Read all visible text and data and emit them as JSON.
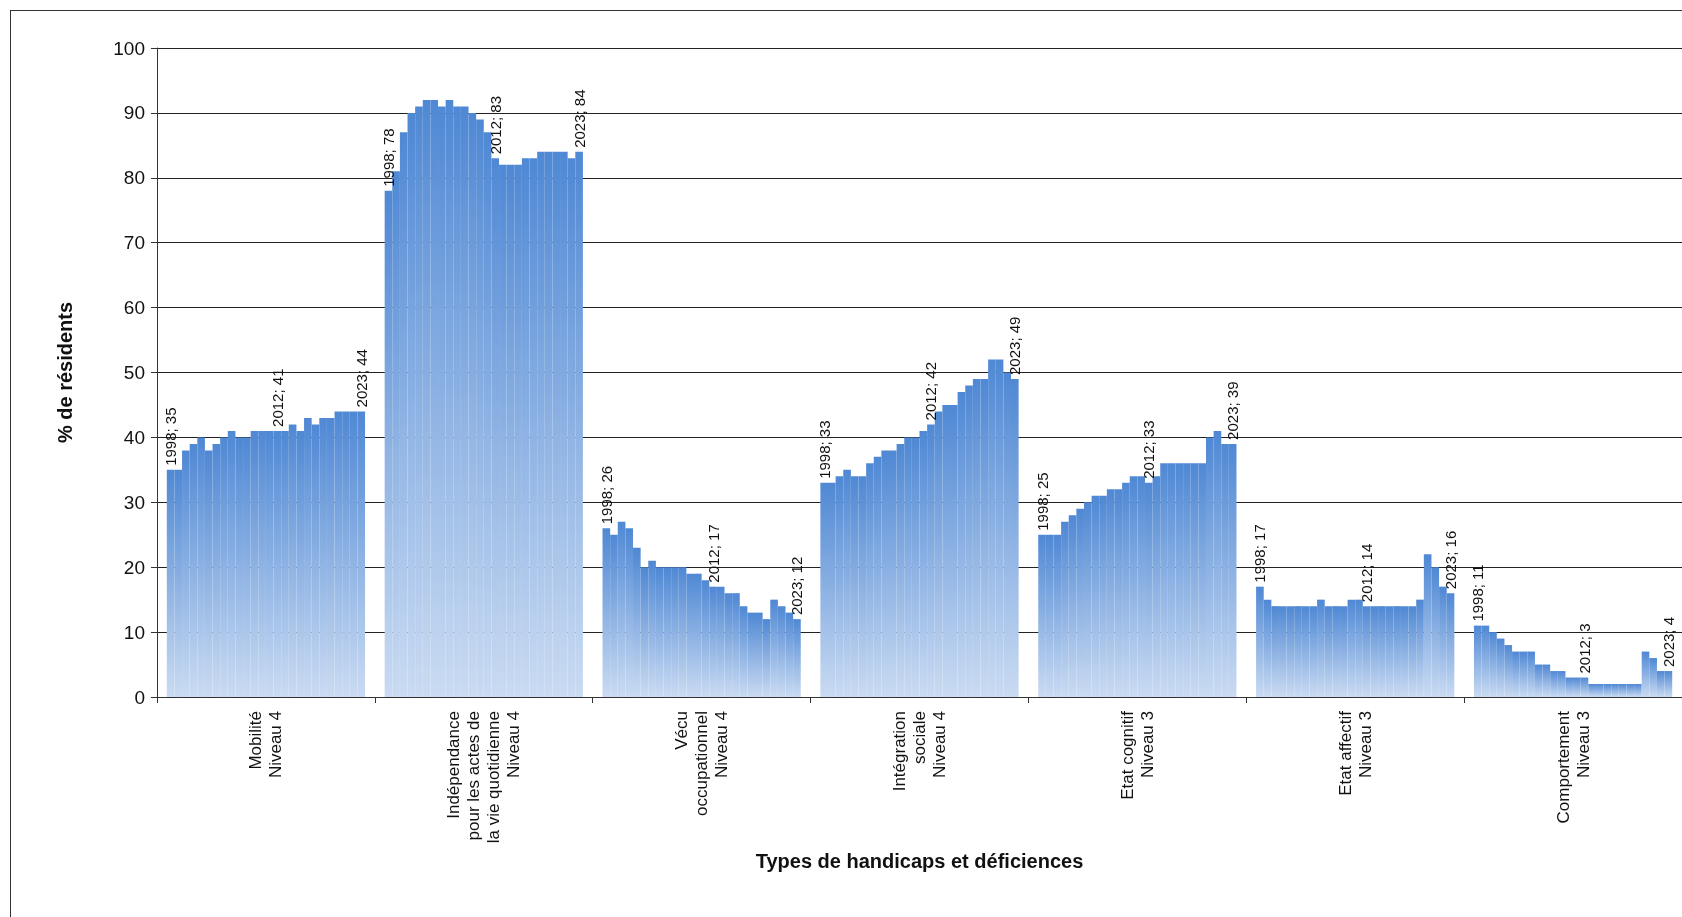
{
  "chart_data": {
    "type": "bar",
    "xlabel": "Types de handicaps et déficiences",
    "ylabel": "% de résidents",
    "categories": [
      "Mobilité\nNiveau 4",
      "Indépendance\npour les actes de\nla vie quotidienne\nNiveau 4",
      "Vécu\noccupationnel\nNiveau 4",
      "Intégration\nsociale\nNiveau 4",
      "Etat cognitif\nNiveau 3",
      "Etat affectif\nNiveau 3",
      "Comportement\nNiveau 3"
    ],
    "ylim": [
      0,
      100
    ],
    "yticks": [
      0,
      10,
      20,
      30,
      40,
      50,
      60,
      70,
      80,
      90,
      100
    ],
    "grid": "y",
    "series": [
      {
        "color": "#4f88d4",
        "values": [
          35,
          78,
          26,
          33,
          25,
          17,
          11
        ],
        "value_labels": [
          "1998; 35",
          "1998; 78",
          "1998; 26",
          "1998; 33",
          "1998; 25",
          "1998; 17",
          "1998; 11"
        ]
      },
      {
        "color": "#4f88d4",
        "values": [
          35,
          81,
          25,
          33,
          25,
          15,
          11
        ]
      },
      {
        "color": "#4f88d4",
        "values": [
          38,
          87,
          27,
          34,
          25,
          14,
          10
        ]
      },
      {
        "color": "#4f88d4",
        "values": [
          39,
          90,
          26,
          35,
          27,
          14,
          9
        ]
      },
      {
        "color": "#4f88d4",
        "values": [
          40,
          91,
          23,
          34,
          28,
          14,
          8
        ]
      },
      {
        "color": "#4f88d4",
        "values": [
          38,
          92,
          20,
          34,
          29,
          14,
          7
        ]
      },
      {
        "color": "#4f88d4",
        "values": [
          39,
          92,
          21,
          36,
          30,
          14,
          7
        ]
      },
      {
        "color": "#4f88d4",
        "values": [
          40,
          91,
          20,
          37,
          31,
          14,
          7
        ]
      },
      {
        "color": "#4f88d4",
        "values": [
          41,
          92,
          20,
          38,
          31,
          15,
          5
        ]
      },
      {
        "color": "#4f88d4",
        "values": [
          40,
          91,
          20,
          38,
          32,
          14,
          5
        ]
      },
      {
        "color": "#4f88d4",
        "values": [
          40,
          91,
          20,
          39,
          32,
          14,
          4
        ]
      },
      {
        "color": "#4f88d4",
        "values": [
          41,
          90,
          19,
          40,
          33,
          14,
          4
        ]
      },
      {
        "color": "#4f88d4",
        "values": [
          41,
          89,
          19,
          40,
          34,
          15,
          3
        ]
      },
      {
        "color": "#4f88d4",
        "values": [
          41,
          87,
          18,
          41,
          34,
          15,
          3
        ]
      },
      {
        "color": "#4f88d4",
        "values": [
          41,
          83,
          17,
          42,
          33,
          14,
          3
        ],
        "value_labels": [
          "2012; 41",
          "2012; 83",
          "2012; 17",
          "2012; 42",
          "2012; 33",
          "2012; 14",
          "2012; 3"
        ]
      },
      {
        "color": "#4f88d4",
        "values": [
          41,
          82,
          17,
          44,
          34,
          14,
          2
        ]
      },
      {
        "color": "#4f88d4",
        "values": [
          42,
          82,
          16,
          45,
          36,
          14,
          2
        ]
      },
      {
        "color": "#4f88d4",
        "values": [
          41,
          82,
          16,
          45,
          36,
          14,
          2
        ]
      },
      {
        "color": "#4f88d4",
        "values": [
          43,
          83,
          14,
          47,
          36,
          14,
          2
        ]
      },
      {
        "color": "#4f88d4",
        "values": [
          42,
          83,
          13,
          48,
          36,
          14,
          2
        ]
      },
      {
        "color": "#4f88d4",
        "values": [
          43,
          84,
          13,
          49,
          36,
          14,
          2
        ]
      },
      {
        "color": "#4f88d4",
        "values": [
          43,
          84,
          12,
          49,
          36,
          15,
          2
        ]
      },
      {
        "color": "#4f88d4",
        "values": [
          44,
          84,
          15,
          52,
          40,
          22,
          7
        ]
      },
      {
        "color": "#4f88d4",
        "values": [
          44,
          84,
          14,
          52,
          41,
          20,
          6
        ]
      },
      {
        "color": "#4f88d4",
        "values": [
          44,
          83,
          13,
          50,
          39,
          17,
          4
        ]
      },
      {
        "color": "#4f88d4",
        "values": [
          44,
          84,
          12,
          49,
          39,
          16,
          4
        ],
        "value_labels": [
          "2023; 44",
          "2023; 84",
          "2023; 12",
          "2023; 49",
          "2023; 39",
          "2023; 16",
          "2023; 4"
        ]
      }
    ]
  }
}
